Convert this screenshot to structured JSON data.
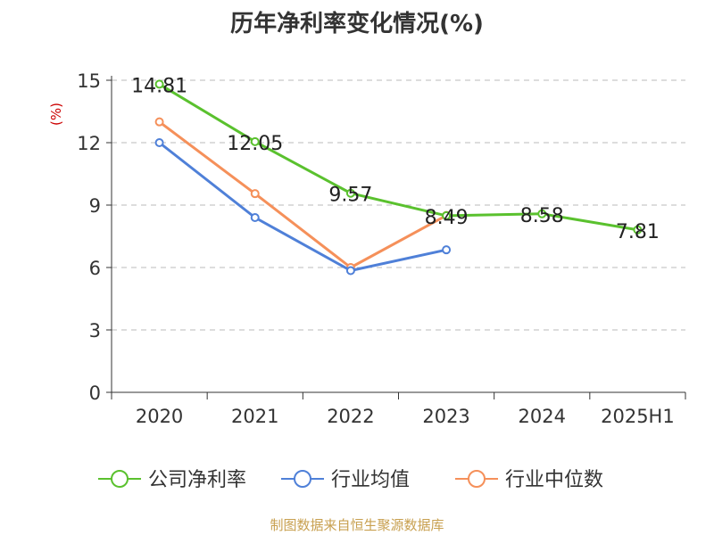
{
  "chart_data": {
    "type": "line",
    "title": "历年净利率变化情况(%)",
    "ylabel": "(%)",
    "xlabel": "",
    "categories": [
      "2020",
      "2021",
      "2022",
      "2023",
      "2024",
      "2025H1"
    ],
    "ylim": [
      0,
      15
    ],
    "yticks": [
      0,
      3,
      6,
      9,
      12,
      15
    ],
    "grid": true,
    "legend_position": "bottom",
    "series": [
      {
        "name": "公司净利率",
        "color": "#5ac12e",
        "values": [
          14.81,
          12.05,
          9.57,
          8.49,
          8.58,
          7.81
        ],
        "labels": [
          "14.81",
          "12.05",
          "9.57",
          "8.49",
          "8.58",
          "7.81"
        ]
      },
      {
        "name": "行业均值",
        "color": "#4f80d8",
        "values": [
          12.0,
          8.4,
          5.85,
          6.85,
          null,
          null
        ]
      },
      {
        "name": "行业中位数",
        "color": "#f5905a",
        "values": [
          13.0,
          9.55,
          6.0,
          8.5,
          null,
          null
        ]
      }
    ]
  },
  "footer": {
    "source": "制图数据来自恒生聚源数据库"
  }
}
